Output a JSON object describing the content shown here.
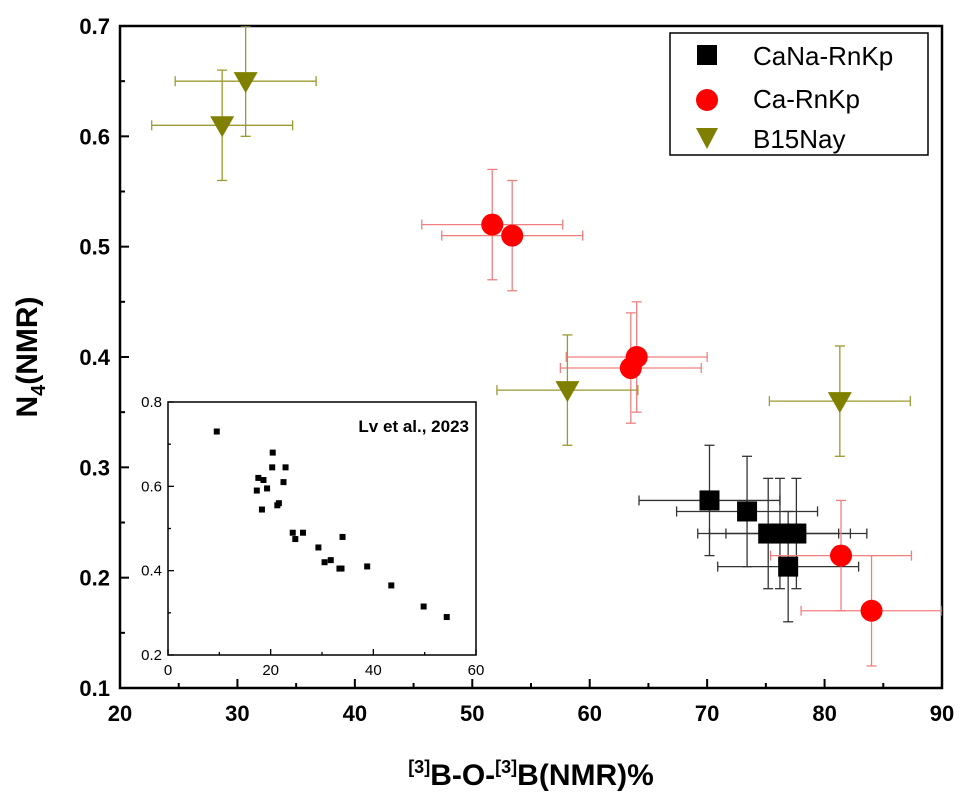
{
  "chart_data": [
    {
      "type": "scatter",
      "xlabel": {
        "pre1": "[3]",
        "mid": "B-O-",
        "pre2": "[3]",
        "post": "B(NMR)%"
      },
      "ylabel": {
        "main": "N",
        "sub": "4",
        "post": "(NMR)"
      },
      "xlim": [
        20,
        90
      ],
      "ylim": [
        0.1,
        0.7
      ],
      "x_ticks": [
        "20",
        "30",
        "40",
        "50",
        "60",
        "70",
        "80",
        "90"
      ],
      "y_ticks": [
        "0.1",
        "0.2",
        "0.3",
        "0.4",
        "0.5",
        "0.6",
        "0.7"
      ],
      "grid": false,
      "legend_position": "top-right",
      "series": [
        {
          "name": "CaNa-RnKp",
          "marker": "square",
          "color": "#000000",
          "error_color": "#333333",
          "points": [
            {
              "x": 70.2,
              "y": 0.27,
              "xerr": 6.0,
              "yerr": 0.05
            },
            {
              "x": 73.4,
              "y": 0.26,
              "xerr": 6.0,
              "yerr": 0.05
            },
            {
              "x": 75.2,
              "y": 0.24,
              "xerr": 6.0,
              "yerr": 0.05
            },
            {
              "x": 76.2,
              "y": 0.24,
              "xerr": 6.0,
              "yerr": 0.05
            },
            {
              "x": 77.6,
              "y": 0.24,
              "xerr": 6.0,
              "yerr": 0.05
            },
            {
              "x": 76.9,
              "y": 0.21,
              "xerr": 6.0,
              "yerr": 0.05
            }
          ]
        },
        {
          "name": "Ca-RnKp",
          "marker": "circle",
          "color": "#ff0000",
          "error_color": "#f08080",
          "points": [
            {
              "x": 51.7,
              "y": 0.52,
              "xerr": 6.0,
              "yerr": 0.05
            },
            {
              "x": 53.4,
              "y": 0.51,
              "xerr": 6.0,
              "yerr": 0.05
            },
            {
              "x": 63.5,
              "y": 0.39,
              "xerr": 6.0,
              "yerr": 0.05
            },
            {
              "x": 64.0,
              "y": 0.4,
              "xerr": 6.0,
              "yerr": 0.05
            },
            {
              "x": 81.4,
              "y": 0.22,
              "xerr": 6.0,
              "yerr": 0.05
            },
            {
              "x": 84.0,
              "y": 0.17,
              "xerr": 6.0,
              "yerr": 0.05
            }
          ]
        },
        {
          "name": "B15Nay",
          "marker": "triangle-down",
          "color": "#808000",
          "error_color": "#9a9a30",
          "points": [
            {
              "x": 28.7,
              "y": 0.61,
              "xerr": 6.0,
              "yerr": 0.05
            },
            {
              "x": 30.7,
              "y": 0.65,
              "xerr": 6.0,
              "yerr": 0.05
            },
            {
              "x": 58.1,
              "y": 0.37,
              "xerr": 6.0,
              "yerr": 0.05
            },
            {
              "x": 81.3,
              "y": 0.36,
              "xerr": 6.0,
              "yerr": 0.05
            }
          ]
        }
      ]
    },
    {
      "type": "scatter",
      "annotation": "Lv et al., 2023",
      "xlim": [
        0,
        60
      ],
      "ylim": [
        0.2,
        0.8
      ],
      "x_ticks": [
        "0",
        "20",
        "40",
        "60"
      ],
      "y_ticks": [
        "0.2",
        "0.4",
        "0.6",
        "0.8"
      ],
      "grid": false,
      "series": [
        {
          "marker": "square",
          "color": "#000000",
          "points": [
            {
              "x": 9.5,
              "y": 0.73
            },
            {
              "x": 17.3,
              "y": 0.59
            },
            {
              "x": 17.6,
              "y": 0.62
            },
            {
              "x": 18.3,
              "y": 0.545
            },
            {
              "x": 18.6,
              "y": 0.615
            },
            {
              "x": 19.3,
              "y": 0.595
            },
            {
              "x": 20.3,
              "y": 0.645
            },
            {
              "x": 20.4,
              "y": 0.68
            },
            {
              "x": 21.3,
              "y": 0.555
            },
            {
              "x": 21.6,
              "y": 0.56
            },
            {
              "x": 22.5,
              "y": 0.61
            },
            {
              "x": 22.9,
              "y": 0.645
            },
            {
              "x": 24.3,
              "y": 0.49
            },
            {
              "x": 24.8,
              "y": 0.475
            },
            {
              "x": 26.3,
              "y": 0.49
            },
            {
              "x": 29.3,
              "y": 0.455
            },
            {
              "x": 30.5,
              "y": 0.42
            },
            {
              "x": 31.7,
              "y": 0.425
            },
            {
              "x": 33.4,
              "y": 0.405
            },
            {
              "x": 33.8,
              "y": 0.405
            },
            {
              "x": 34.0,
              "y": 0.48
            },
            {
              "x": 38.8,
              "y": 0.41
            },
            {
              "x": 43.5,
              "y": 0.365
            },
            {
              "x": 49.8,
              "y": 0.315
            },
            {
              "x": 54.3,
              "y": 0.29
            }
          ]
        }
      ]
    }
  ]
}
